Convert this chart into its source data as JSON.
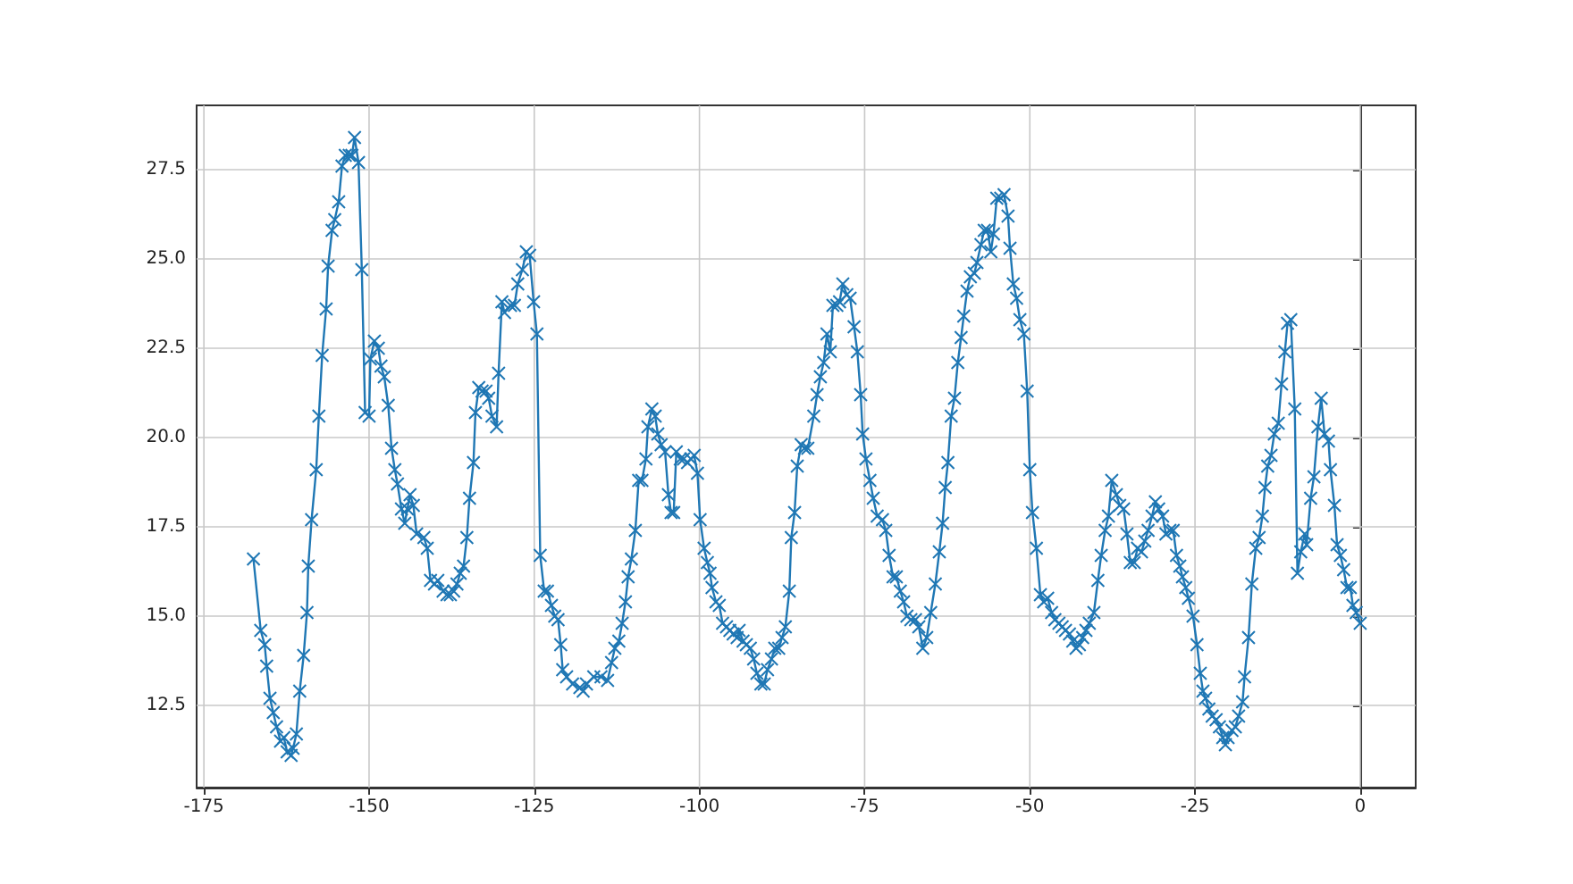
{
  "chart_data": {
    "type": "line",
    "marker": "cross",
    "grid": true,
    "line_style": "solid",
    "xlim": [
      -176.1,
      8.4
    ],
    "ylim": [
      10.2,
      29.3
    ],
    "xticks": [
      -175,
      -150,
      -125,
      -100,
      -75,
      -50,
      -25,
      0
    ],
    "yticks": [
      {
        "value": 12.5,
        "label": "12.5"
      },
      {
        "value": 15,
        "label": "15.0"
      },
      {
        "value": 17.5,
        "label": "17.5"
      },
      {
        "value": 20,
        "label": "20.0"
      },
      {
        "value": 22.5,
        "label": "22.5"
      },
      {
        "value": 25,
        "label": "25.0"
      },
      {
        "value": 27.5,
        "label": "27.5"
      }
    ],
    "series": [
      {
        "color": "#1f77b4",
        "x": [
          -167.5,
          -166.4,
          -165.8,
          -165.5,
          -165.0,
          -164.5,
          -164.0,
          -163.4,
          -162.9,
          -162.4,
          -161.8,
          -161.5,
          -161.0,
          -160.5,
          -159.9,
          -159.4,
          -159.2,
          -158.7,
          -158.0,
          -157.6,
          -157.1,
          -156.5,
          -156.2,
          -155.6,
          -155.2,
          -154.6,
          -154.1,
          -153.6,
          -153.0,
          -152.6,
          -152.2,
          -151.6,
          -151.1,
          -150.6,
          -150.0,
          -149.8,
          -149.2,
          -148.6,
          -148.2,
          -147.7,
          -147.1,
          -146.6,
          -146.1,
          -145.7,
          -145.1,
          -144.6,
          -144.2,
          -143.8,
          -143.3,
          -142.8,
          -141.7,
          -141.2,
          -140.7,
          -140.1,
          -139.6,
          -138.8,
          -138.2,
          -137.7,
          -137.2,
          -136.7,
          -136.2,
          -135.7,
          -135.2,
          -134.8,
          -134.2,
          -133.9,
          -133.4,
          -132.9,
          -132.3,
          -131.9,
          -131.4,
          -130.7,
          -130.4,
          -129.9,
          -129.5,
          -128.6,
          -128.0,
          -127.5,
          -126.8,
          -126.2,
          -125.7,
          -125.1,
          -124.6,
          -124.1,
          -123.5,
          -123.0,
          -122.4,
          -121.9,
          -121.4,
          -121.0,
          -120.7,
          -120.1,
          -119.2,
          -118.1,
          -117.6,
          -117.1,
          -116.0,
          -114.9,
          -113.9,
          -113.3,
          -112.8,
          -112.2,
          -111.7,
          -111.2,
          -110.8,
          -110.3,
          -109.7,
          -109.2,
          -108.7,
          -108.1,
          -107.8,
          -107.2,
          -106.7,
          -106.3,
          -105.8,
          -105.2,
          -104.7,
          -104.3,
          -103.9,
          -103.5,
          -102.9,
          -102.4,
          -101.8,
          -101.3,
          -100.8,
          -100.3,
          -99.9,
          -99.3,
          -98.8,
          -98.4,
          -98.1,
          -97.5,
          -97.0,
          -96.5,
          -95.9,
          -95.4,
          -94.9,
          -94.3,
          -94.0,
          -93.4,
          -92.9,
          -92.3,
          -91.8,
          -91.3,
          -90.7,
          -90.2,
          -89.7,
          -89.1,
          -88.6,
          -88.0,
          -87.5,
          -87.0,
          -86.4,
          -86.1,
          -85.6,
          -85.2,
          -84.6,
          -84.1,
          -83.6,
          -82.7,
          -82.2,
          -81.7,
          -81.2,
          -80.7,
          -80.2,
          -79.8,
          -79.2,
          -78.8,
          -78.3,
          -77.7,
          -77.2,
          -76.6,
          -76.1,
          -75.6,
          -75.3,
          -74.8,
          -74.2,
          -73.7,
          -73.1,
          -72.3,
          -71.8,
          -71.3,
          -70.7,
          -70.2,
          -69.6,
          -69.1,
          -68.6,
          -68.0,
          -67.3,
          -66.8,
          -66.2,
          -65.6,
          -65.0,
          -64.3,
          -63.7,
          -63.2,
          -62.8,
          -62.4,
          -61.9,
          -61.4,
          -60.9,
          -60.4,
          -60.0,
          -59.5,
          -59.0,
          -58.4,
          -58.0,
          -57.4,
          -56.9,
          -56.4,
          -55.9,
          -55.5,
          -55.0,
          -54.4,
          -53.9,
          -53.3,
          -53.0,
          -52.5,
          -52.0,
          -51.5,
          -50.9,
          -50.4,
          -50.0,
          -49.6,
          -49.0,
          -48.4,
          -47.9,
          -47.3,
          -46.7,
          -46.2,
          -45.6,
          -45.1,
          -44.6,
          -44.0,
          -43.5,
          -43.0,
          -42.5,
          -42.0,
          -41.5,
          -41.0,
          -40.3,
          -39.7,
          -39.2,
          -38.6,
          -38.1,
          -37.6,
          -36.9,
          -36.4,
          -35.8,
          -35.3,
          -34.8,
          -34.2,
          -33.7,
          -33.1,
          -32.6,
          -32.1,
          -31.5,
          -31.0,
          -30.5,
          -29.9,
          -29.4,
          -28.8,
          -28.3,
          -27.8,
          -27.3,
          -26.9,
          -26.4,
          -26.0,
          -25.3,
          -24.7,
          -24.2,
          -23.8,
          -23.4,
          -22.9,
          -22.4,
          -21.8,
          -21.3,
          -20.8,
          -20.4,
          -20.0,
          -19.4,
          -18.9,
          -18.4,
          -17.8,
          -17.5,
          -16.9,
          -16.4,
          -15.8,
          -15.3,
          -14.8,
          -14.4,
          -14.0,
          -13.5,
          -13.0,
          -12.4,
          -11.9,
          -11.4,
          -11.0,
          -10.5,
          -9.9,
          -9.5,
          -9.0,
          -8.4,
          -8.1,
          -7.5,
          -7.0,
          -6.4,
          -5.9,
          -5.4,
          -4.8,
          -4.5,
          -3.9,
          -3.5,
          -3.0,
          -2.5,
          -2.0,
          -1.5,
          -1.1,
          -0.6,
          0.0
        ],
        "values": [
          16.6,
          14.6,
          14.2,
          13.6,
          12.7,
          12.3,
          11.9,
          11.5,
          11.6,
          11.2,
          11.1,
          11.3,
          11.7,
          12.9,
          13.9,
          15.1,
          16.4,
          17.7,
          19.1,
          20.6,
          22.3,
          23.6,
          24.8,
          25.8,
          26.1,
          26.6,
          27.6,
          27.9,
          27.9,
          27.9,
          28.4,
          27.7,
          24.7,
          20.7,
          20.6,
          22.2,
          22.7,
          22.5,
          22.0,
          21.7,
          20.9,
          19.7,
          19.1,
          18.7,
          18.0,
          17.6,
          18.0,
          18.4,
          18.1,
          17.3,
          17.2,
          16.9,
          16.0,
          15.9,
          16.0,
          15.7,
          15.6,
          15.6,
          15.7,
          15.9,
          16.2,
          16.4,
          17.2,
          18.3,
          19.3,
          20.7,
          21.4,
          21.3,
          21.3,
          21.1,
          20.6,
          20.3,
          21.8,
          23.8,
          23.5,
          23.7,
          23.7,
          24.3,
          24.7,
          25.2,
          25.1,
          23.8,
          22.9,
          16.7,
          15.7,
          15.7,
          15.3,
          15.0,
          14.9,
          14.2,
          13.5,
          13.3,
          13.1,
          13.0,
          12.9,
          13.1,
          13.3,
          13.3,
          13.2,
          13.7,
          14.1,
          14.3,
          14.8,
          15.4,
          16.1,
          16.6,
          17.4,
          18.8,
          18.8,
          19.4,
          20.3,
          20.8,
          20.6,
          20.1,
          19.8,
          19.6,
          18.4,
          17.9,
          17.9,
          19.6,
          19.4,
          19.4,
          19.3,
          19.4,
          19.5,
          19.0,
          17.7,
          16.9,
          16.5,
          16.2,
          15.8,
          15.4,
          15.3,
          14.8,
          14.7,
          14.6,
          14.5,
          14.4,
          14.6,
          14.3,
          14.2,
          14.1,
          13.8,
          13.4,
          13.1,
          13.1,
          13.5,
          13.8,
          14.1,
          14.1,
          14.4,
          14.7,
          15.7,
          17.2,
          17.9,
          19.2,
          19.8,
          19.7,
          19.7,
          20.6,
          21.2,
          21.7,
          22.1,
          22.9,
          22.4,
          23.7,
          23.7,
          23.8,
          24.3,
          24.0,
          23.9,
          23.1,
          22.4,
          21.2,
          20.1,
          19.4,
          18.8,
          18.3,
          17.8,
          17.7,
          17.4,
          16.7,
          16.1,
          16.1,
          15.7,
          15.4,
          15.0,
          14.9,
          14.9,
          14.7,
          14.1,
          14.4,
          15.1,
          15.9,
          16.8,
          17.6,
          18.6,
          19.3,
          20.6,
          21.1,
          22.1,
          22.8,
          23.4,
          24.1,
          24.5,
          24.6,
          24.9,
          25.4,
          25.8,
          25.8,
          25.2,
          25.7,
          26.7,
          26.7,
          26.8,
          26.2,
          25.3,
          24.3,
          23.9,
          23.3,
          22.9,
          21.3,
          19.1,
          17.9,
          16.9,
          15.6,
          15.4,
          15.5,
          15.1,
          14.9,
          14.8,
          14.7,
          14.6,
          14.5,
          14.3,
          14.1,
          14.2,
          14.4,
          14.6,
          14.8,
          15.1,
          16.0,
          16.7,
          17.4,
          17.8,
          18.8,
          18.4,
          18.1,
          18.0,
          17.3,
          16.5,
          16.5,
          16.9,
          16.8,
          17.1,
          17.4,
          17.8,
          18.2,
          18.0,
          17.8,
          17.3,
          17.4,
          17.4,
          16.7,
          16.4,
          16.1,
          15.8,
          15.5,
          15.0,
          14.2,
          13.4,
          12.9,
          12.7,
          12.4,
          12.2,
          12.1,
          11.9,
          11.6,
          11.4,
          11.6,
          11.8,
          11.9,
          12.2,
          12.6,
          13.3,
          14.4,
          15.9,
          16.9,
          17.2,
          17.8,
          18.6,
          19.2,
          19.5,
          20.1,
          20.4,
          21.5,
          22.4,
          23.2,
          23.3,
          20.8,
          16.2,
          16.8,
          17.3,
          17.0,
          18.3,
          18.9,
          20.3,
          21.1,
          20.1,
          19.9,
          19.1,
          18.1,
          17.0,
          16.7,
          16.3,
          15.8,
          15.8,
          15.3,
          15.1,
          14.8
        ]
      }
    ]
  }
}
